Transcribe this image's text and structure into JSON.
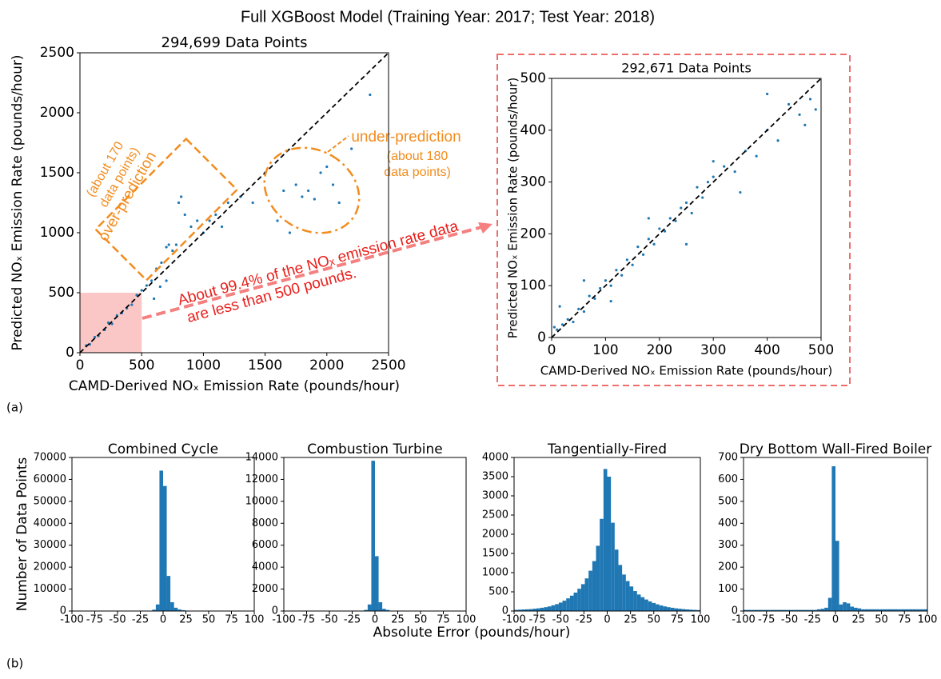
{
  "title": "Full XGBoost Model (Training Year: 2017; Test Year: 2018)",
  "panel_labels": [
    "(a)",
    "(b)"
  ],
  "shared_xlabel": "Absolute Error (pounds/hour)",
  "shared_ylabel": "Number of Data Points",
  "chart_data": [
    {
      "type": "scatter",
      "subtitle": "294,699 Data Points",
      "xlabel": "CAMD-Derived NOₓ Emission Rate (pounds/hour)",
      "ylabel": "Predicted NOₓ Emission Rate (pounds/hour)",
      "xlim": [
        0,
        2500
      ],
      "ylim": [
        0,
        2500
      ],
      "xticks": [
        0,
        500,
        1000,
        1500,
        2000,
        2500
      ],
      "yticks": [
        0,
        500,
        1000,
        1500,
        2000,
        2500
      ],
      "color": "#1f77b4",
      "x": [
        50,
        80,
        120,
        150,
        200,
        230,
        260,
        300,
        340,
        380,
        420,
        460,
        500,
        540,
        580,
        620,
        660,
        700,
        720,
        750,
        780,
        800,
        820,
        850,
        900,
        950,
        1000,
        1050,
        1100,
        1150,
        1200,
        1300,
        1400,
        1500,
        1650,
        1750,
        1800,
        1850,
        1900,
        1950,
        2000,
        2050,
        2100,
        2200,
        2350,
        600,
        650,
        700,
        1600,
        1700
      ],
      "y": [
        60,
        70,
        130,
        140,
        190,
        250,
        240,
        310,
        330,
        370,
        400,
        480,
        520,
        560,
        600,
        700,
        750,
        880,
        900,
        850,
        900,
        1250,
        1300,
        1150,
        1050,
        1100,
        1000,
        1100,
        1150,
        1050,
        1250,
        1300,
        1250,
        1500,
        1350,
        1400,
        1300,
        1350,
        1280,
        1500,
        1550,
        1400,
        1250,
        1700,
        2150,
        450,
        550,
        600,
        1100,
        1000
      ],
      "annotations": [
        "(about 170",
        "data points)",
        "over-prediction",
        "under-prediction",
        "(about 180",
        "data points)",
        "About 99.4% of the NOₓ emission rate data",
        "are less than 500 pounds."
      ]
    },
    {
      "type": "scatter",
      "subtitle": "292,671 Data Points",
      "xlabel": "CAMD-Derived NOₓ Emission Rate (pounds/hour)",
      "ylabel": "Predicted NOₓ Emission Rate (pounds/hour)",
      "xlim": [
        0,
        500
      ],
      "ylim": [
        0,
        500
      ],
      "xticks": [
        0,
        100,
        200,
        300,
        400,
        500
      ],
      "yticks": [
        0,
        100,
        200,
        300,
        400,
        500
      ],
      "color": "#1f77b4",
      "x": [
        5,
        10,
        20,
        30,
        40,
        50,
        60,
        70,
        80,
        90,
        100,
        110,
        120,
        130,
        140,
        150,
        160,
        170,
        180,
        190,
        200,
        210,
        220,
        230,
        240,
        250,
        260,
        270,
        280,
        290,
        300,
        320,
        340,
        360,
        380,
        400,
        420,
        440,
        460,
        480,
        490,
        15,
        60,
        110,
        180,
        250,
        300,
        350,
        400,
        470
      ],
      "y": [
        20,
        15,
        25,
        35,
        30,
        55,
        50,
        80,
        75,
        95,
        110,
        100,
        130,
        120,
        150,
        140,
        175,
        160,
        190,
        180,
        210,
        205,
        230,
        225,
        250,
        260,
        240,
        290,
        270,
        300,
        310,
        330,
        320,
        360,
        350,
        400,
        380,
        450,
        430,
        460,
        440,
        60,
        110,
        70,
        230,
        180,
        340,
        280,
        470,
        410
      ]
    },
    {
      "type": "histogram",
      "title": "Combined Cycle",
      "color": "#1f77b4",
      "xlim": [
        -100,
        100
      ],
      "ylim": [
        0,
        70000
      ],
      "xticks": [
        -100,
        -75,
        -50,
        -25,
        0,
        25,
        50,
        75,
        100
      ],
      "yticks": [
        0,
        10000,
        20000,
        30000,
        40000,
        50000,
        60000,
        70000
      ],
      "bins": [
        -100,
        -96,
        -92,
        -88,
        -84,
        -80,
        -76,
        -72,
        -68,
        -64,
        -60,
        -56,
        -52,
        -48,
        -44,
        -40,
        -36,
        -32,
        -28,
        -24,
        -20,
        -16,
        -12,
        -8,
        -4,
        0,
        4,
        8,
        12,
        16,
        20,
        24,
        28,
        32,
        36,
        40,
        44,
        48,
        52,
        56,
        60,
        64,
        68,
        72,
        76,
        80,
        84,
        88,
        92,
        96,
        100
      ],
      "counts": [
        0,
        0,
        0,
        0,
        0,
        0,
        0,
        0,
        0,
        0,
        0,
        0,
        0,
        0,
        0,
        0,
        0,
        0,
        0,
        0,
        0,
        100,
        600,
        3000,
        64000,
        57000,
        16000,
        4000,
        1500,
        700,
        400,
        200,
        100,
        0,
        0,
        0,
        0,
        0,
        0,
        0,
        0,
        0,
        0,
        0,
        0,
        0,
        0,
        0,
        0,
        0
      ]
    },
    {
      "type": "histogram",
      "title": "Combustion Turbine",
      "color": "#1f77b4",
      "xlim": [
        -100,
        100
      ],
      "ylim": [
        0,
        14000
      ],
      "xticks": [
        -100,
        -75,
        -50,
        -25,
        0,
        25,
        50,
        75,
        100
      ],
      "yticks": [
        0,
        2000,
        4000,
        6000,
        8000,
        10000,
        12000,
        14000
      ],
      "bins": [
        -100,
        -96,
        -92,
        -88,
        -84,
        -80,
        -76,
        -72,
        -68,
        -64,
        -60,
        -56,
        -52,
        -48,
        -44,
        -40,
        -36,
        -32,
        -28,
        -24,
        -20,
        -16,
        -12,
        -8,
        -4,
        0,
        4,
        8,
        12,
        16,
        20,
        24,
        28,
        32,
        36,
        40,
        44,
        48,
        52,
        56,
        60,
        64,
        68,
        72,
        76,
        80,
        84,
        88,
        92,
        96,
        100
      ],
      "counts": [
        0,
        0,
        0,
        0,
        0,
        0,
        0,
        0,
        0,
        0,
        0,
        0,
        0,
        0,
        0,
        0,
        0,
        0,
        0,
        0,
        0,
        0,
        100,
        600,
        13700,
        5000,
        800,
        200,
        100,
        0,
        0,
        0,
        0,
        0,
        0,
        0,
        0,
        0,
        0,
        0,
        0,
        0,
        0,
        0,
        0,
        0,
        0,
        0,
        0,
        0
      ]
    },
    {
      "type": "histogram",
      "title": "Tangentially-Fired",
      "color": "#1f77b4",
      "xlim": [
        -100,
        100
      ],
      "ylim": [
        0,
        4000
      ],
      "xticks": [
        -100,
        -75,
        -50,
        -25,
        0,
        25,
        50,
        75,
        100
      ],
      "yticks": [
        0,
        500,
        1000,
        1500,
        2000,
        2500,
        3000,
        3500,
        4000
      ],
      "bins": [
        -100,
        -96,
        -92,
        -88,
        -84,
        -80,
        -76,
        -72,
        -68,
        -64,
        -60,
        -56,
        -52,
        -48,
        -44,
        -40,
        -36,
        -32,
        -28,
        -24,
        -20,
        -16,
        -12,
        -8,
        -4,
        0,
        4,
        8,
        12,
        16,
        20,
        24,
        28,
        32,
        36,
        40,
        44,
        48,
        52,
        56,
        60,
        64,
        68,
        72,
        76,
        80,
        84,
        88,
        92,
        96,
        100
      ],
      "counts": [
        30,
        35,
        40,
        45,
        50,
        60,
        70,
        85,
        100,
        120,
        150,
        180,
        220,
        270,
        330,
        400,
        480,
        580,
        700,
        850,
        1050,
        1300,
        1700,
        2400,
        3700,
        3500,
        2300,
        1600,
        1200,
        950,
        780,
        640,
        520,
        430,
        360,
        300,
        250,
        210,
        175,
        145,
        120,
        100,
        85,
        70,
        60,
        50,
        42,
        35,
        30,
        25
      ]
    },
    {
      "type": "histogram",
      "title": "Dry Bottom Wall-Fired Boiler",
      "color": "#1f77b4",
      "xlim": [
        -100,
        100
      ],
      "ylim": [
        0,
        700
      ],
      "xticks": [
        -100,
        -75,
        -50,
        -25,
        0,
        25,
        50,
        75,
        100
      ],
      "yticks": [
        0,
        100,
        200,
        300,
        400,
        500,
        600,
        700
      ],
      "bins": [
        -100,
        -96,
        -92,
        -88,
        -84,
        -80,
        -76,
        -72,
        -68,
        -64,
        -60,
        -56,
        -52,
        -48,
        -44,
        -40,
        -36,
        -32,
        -28,
        -24,
        -20,
        -16,
        -12,
        -8,
        -4,
        0,
        4,
        8,
        12,
        16,
        20,
        24,
        28,
        32,
        36,
        40,
        44,
        48,
        52,
        56,
        60,
        64,
        68,
        72,
        76,
        80,
        84,
        88,
        92,
        96,
        100
      ],
      "counts": [
        5,
        5,
        5,
        5,
        5,
        5,
        5,
        5,
        5,
        5,
        5,
        5,
        5,
        5,
        5,
        5,
        5,
        5,
        5,
        5,
        8,
        10,
        15,
        60,
        660,
        320,
        30,
        40,
        35,
        20,
        15,
        12,
        8,
        8,
        8,
        8,
        8,
        8,
        8,
        8,
        8,
        8,
        8,
        8,
        8,
        8,
        8,
        8,
        8,
        8
      ]
    }
  ]
}
